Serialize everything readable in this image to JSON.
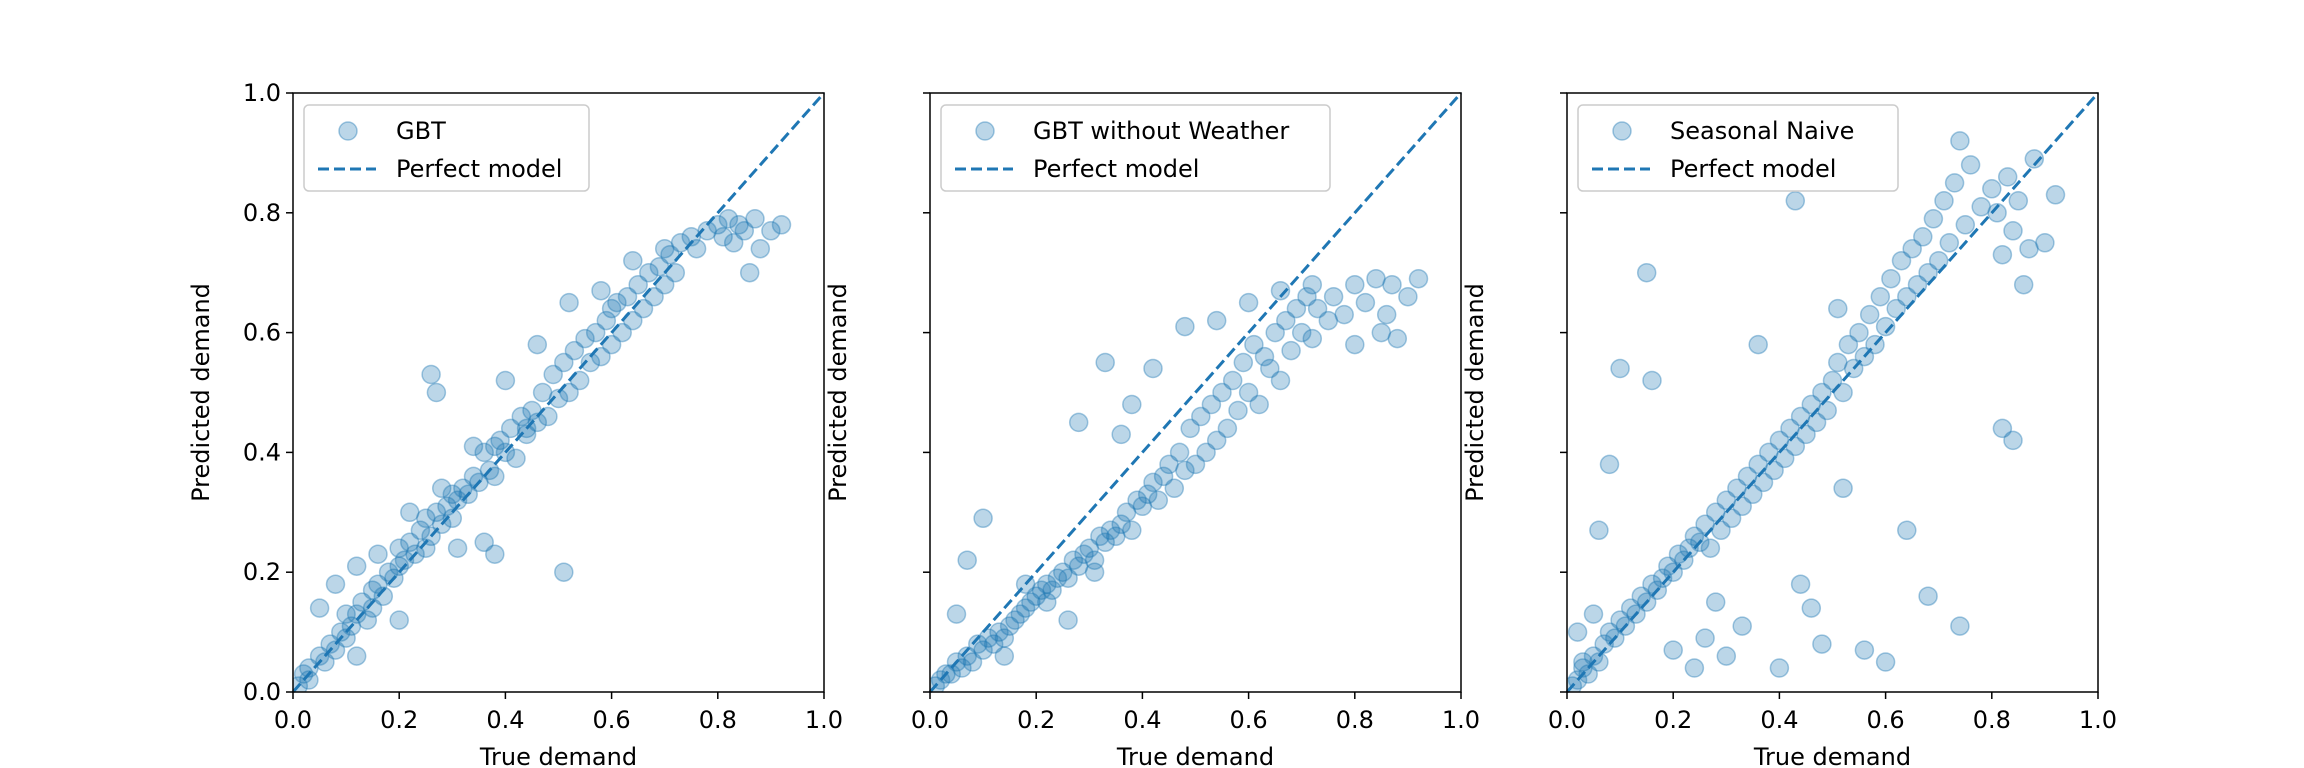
{
  "chart_data": [
    {
      "type": "scatter",
      "xlabel": "True demand",
      "ylabel": "Predicted demand",
      "xlim": [
        0.0,
        1.0
      ],
      "ylim": [
        0.0,
        1.0
      ],
      "x_ticks": [
        "0.0",
        "0.2",
        "0.4",
        "0.6",
        "0.8",
        "1.0"
      ],
      "y_ticks": [
        "0.0",
        "0.2",
        "0.4",
        "0.6",
        "0.8",
        "1.0"
      ],
      "legend": {
        "location": "upper-left",
        "entries": [
          "GBT",
          "Perfect model"
        ]
      },
      "series": [
        {
          "name": "GBT",
          "kind": "points",
          "color": "#1f77b4",
          "alpha": 0.3,
          "x": [
            0.01,
            0.02,
            0.03,
            0.03,
            0.05,
            0.06,
            0.07,
            0.08,
            0.09,
            0.1,
            0.1,
            0.11,
            0.12,
            0.13,
            0.14,
            0.15,
            0.15,
            0.16,
            0.17,
            0.18,
            0.19,
            0.2,
            0.2,
            0.21,
            0.22,
            0.23,
            0.24,
            0.25,
            0.25,
            0.26,
            0.27,
            0.28,
            0.29,
            0.3,
            0.3,
            0.31,
            0.32,
            0.33,
            0.34,
            0.35,
            0.36,
            0.37,
            0.38,
            0.38,
            0.39,
            0.4,
            0.41,
            0.42,
            0.43,
            0.44,
            0.45,
            0.46,
            0.47,
            0.48,
            0.49,
            0.5,
            0.51,
            0.52,
            0.53,
            0.54,
            0.55,
            0.56,
            0.57,
            0.58,
            0.59,
            0.6,
            0.61,
            0.62,
            0.63,
            0.64,
            0.65,
            0.66,
            0.67,
            0.68,
            0.69,
            0.7,
            0.71,
            0.72,
            0.73,
            0.75,
            0.76,
            0.78,
            0.8,
            0.81,
            0.82,
            0.83,
            0.84,
            0.85,
            0.86,
            0.87,
            0.88,
            0.9,
            0.92,
            0.05,
            0.08,
            0.12,
            0.16,
            0.22,
            0.28,
            0.34,
            0.4,
            0.46,
            0.52,
            0.58,
            0.64,
            0.7,
            0.12,
            0.2,
            0.26,
            0.36,
            0.44,
            0.51,
            0.6,
            0.38,
            0.27,
            0.31
          ],
          "y": [
            0.01,
            0.03,
            0.04,
            0.02,
            0.06,
            0.05,
            0.08,
            0.07,
            0.1,
            0.09,
            0.13,
            0.11,
            0.13,
            0.15,
            0.12,
            0.17,
            0.14,
            0.18,
            0.16,
            0.2,
            0.19,
            0.21,
            0.24,
            0.22,
            0.25,
            0.23,
            0.27,
            0.24,
            0.29,
            0.26,
            0.3,
            0.28,
            0.31,
            0.29,
            0.33,
            0.32,
            0.34,
            0.33,
            0.36,
            0.35,
            0.4,
            0.37,
            0.41,
            0.36,
            0.42,
            0.4,
            0.44,
            0.39,
            0.46,
            0.43,
            0.47,
            0.45,
            0.5,
            0.46,
            0.53,
            0.49,
            0.55,
            0.5,
            0.57,
            0.52,
            0.59,
            0.55,
            0.6,
            0.56,
            0.62,
            0.58,
            0.65,
            0.6,
            0.66,
            0.62,
            0.68,
            0.64,
            0.7,
            0.66,
            0.71,
            0.68,
            0.73,
            0.7,
            0.75,
            0.76,
            0.74,
            0.77,
            0.78,
            0.76,
            0.79,
            0.75,
            0.78,
            0.77,
            0.7,
            0.79,
            0.74,
            0.77,
            0.78,
            0.14,
            0.18,
            0.21,
            0.23,
            0.3,
            0.34,
            0.41,
            0.52,
            0.58,
            0.65,
            0.67,
            0.72,
            0.74,
            0.06,
            0.12,
            0.53,
            0.25,
            0.44,
            0.2,
            0.64,
            0.23,
            0.5,
            0.24
          ]
        },
        {
          "name": "Perfect model",
          "kind": "dashed-line",
          "color": "#1f77b4",
          "x": [
            0.0,
            1.0
          ],
          "y": [
            0.0,
            1.0
          ]
        }
      ]
    },
    {
      "type": "scatter",
      "xlabel": "True demand",
      "ylabel": "Predicted demand",
      "xlim": [
        0.0,
        1.0
      ],
      "ylim": [
        0.0,
        1.0
      ],
      "x_ticks": [
        "0.0",
        "0.2",
        "0.4",
        "0.6",
        "0.8",
        "1.0"
      ],
      "y_ticks": [
        "",
        "",
        "",
        "",
        "",
        ""
      ],
      "legend": {
        "location": "upper-left",
        "entries": [
          "GBT without Weather",
          "Perfect model"
        ]
      },
      "series": [
        {
          "name": "GBT without Weather",
          "kind": "points",
          "color": "#1f77b4",
          "alpha": 0.3,
          "x": [
            0.01,
            0.02,
            0.03,
            0.04,
            0.05,
            0.06,
            0.07,
            0.08,
            0.09,
            0.1,
            0.11,
            0.12,
            0.13,
            0.14,
            0.15,
            0.16,
            0.17,
            0.18,
            0.19,
            0.2,
            0.21,
            0.22,
            0.23,
            0.24,
            0.25,
            0.26,
            0.27,
            0.28,
            0.29,
            0.3,
            0.31,
            0.32,
            0.33,
            0.34,
            0.35,
            0.36,
            0.37,
            0.38,
            0.39,
            0.4,
            0.41,
            0.42,
            0.43,
            0.44,
            0.45,
            0.46,
            0.47,
            0.48,
            0.49,
            0.5,
            0.51,
            0.52,
            0.53,
            0.54,
            0.55,
            0.56,
            0.57,
            0.58,
            0.59,
            0.6,
            0.61,
            0.62,
            0.63,
            0.64,
            0.65,
            0.66,
            0.67,
            0.68,
            0.69,
            0.7,
            0.71,
            0.72,
            0.73,
            0.75,
            0.76,
            0.78,
            0.8,
            0.82,
            0.84,
            0.85,
            0.86,
            0.87,
            0.88,
            0.9,
            0.92,
            0.05,
            0.07,
            0.1,
            0.14,
            0.18,
            0.22,
            0.28,
            0.33,
            0.38,
            0.42,
            0.48,
            0.54,
            0.6,
            0.66,
            0.72,
            0.8,
            0.26,
            0.31,
            0.36
          ],
          "y": [
            0.01,
            0.02,
            0.03,
            0.03,
            0.05,
            0.04,
            0.06,
            0.05,
            0.08,
            0.07,
            0.09,
            0.08,
            0.1,
            0.09,
            0.11,
            0.12,
            0.13,
            0.14,
            0.15,
            0.16,
            0.17,
            0.18,
            0.17,
            0.19,
            0.2,
            0.19,
            0.22,
            0.21,
            0.23,
            0.24,
            0.22,
            0.26,
            0.25,
            0.27,
            0.26,
            0.28,
            0.3,
            0.27,
            0.32,
            0.31,
            0.33,
            0.35,
            0.32,
            0.36,
            0.38,
            0.34,
            0.4,
            0.37,
            0.44,
            0.38,
            0.46,
            0.4,
            0.48,
            0.42,
            0.5,
            0.44,
            0.52,
            0.47,
            0.55,
            0.5,
            0.58,
            0.48,
            0.56,
            0.54,
            0.6,
            0.52,
            0.62,
            0.57,
            0.64,
            0.6,
            0.66,
            0.59,
            0.64,
            0.62,
            0.66,
            0.63,
            0.68,
            0.65,
            0.69,
            0.6,
            0.63,
            0.68,
            0.59,
            0.66,
            0.69,
            0.13,
            0.22,
            0.29,
            0.06,
            0.18,
            0.15,
            0.45,
            0.55,
            0.48,
            0.54,
            0.61,
            0.62,
            0.65,
            0.67,
            0.68,
            0.58,
            0.12,
            0.2,
            0.43
          ]
        },
        {
          "name": "Perfect model",
          "kind": "dashed-line",
          "color": "#1f77b4",
          "x": [
            0.0,
            1.0
          ],
          "y": [
            0.0,
            1.0
          ]
        }
      ]
    },
    {
      "type": "scatter",
      "xlabel": "True demand",
      "ylabel": "Predicted demand",
      "xlim": [
        0.0,
        1.0
      ],
      "ylim": [
        0.0,
        1.0
      ],
      "x_ticks": [
        "0.0",
        "0.2",
        "0.4",
        "0.6",
        "0.8",
        "1.0"
      ],
      "y_ticks": [
        "",
        "",
        "",
        "",
        "",
        ""
      ],
      "legend": {
        "location": "upper-left",
        "entries": [
          "Seasonal Naive",
          "Perfect model"
        ]
      },
      "series": [
        {
          "name": "Seasonal Naive",
          "kind": "points",
          "color": "#1f77b4",
          "alpha": 0.3,
          "x": [
            0.01,
            0.02,
            0.03,
            0.04,
            0.05,
            0.06,
            0.07,
            0.08,
            0.09,
            0.1,
            0.11,
            0.12,
            0.13,
            0.14,
            0.15,
            0.16,
            0.17,
            0.18,
            0.19,
            0.2,
            0.21,
            0.22,
            0.23,
            0.24,
            0.25,
            0.26,
            0.27,
            0.28,
            0.29,
            0.3,
            0.31,
            0.32,
            0.33,
            0.34,
            0.35,
            0.36,
            0.37,
            0.38,
            0.39,
            0.4,
            0.41,
            0.42,
            0.43,
            0.44,
            0.45,
            0.46,
            0.47,
            0.48,
            0.49,
            0.5,
            0.51,
            0.52,
            0.53,
            0.54,
            0.55,
            0.56,
            0.57,
            0.58,
            0.59,
            0.6,
            0.61,
            0.62,
            0.63,
            0.64,
            0.65,
            0.66,
            0.67,
            0.68,
            0.69,
            0.7,
            0.71,
            0.72,
            0.73,
            0.74,
            0.75,
            0.76,
            0.78,
            0.8,
            0.81,
            0.82,
            0.83,
            0.84,
            0.85,
            0.86,
            0.87,
            0.88,
            0.9,
            0.92,
            0.02,
            0.03,
            0.05,
            0.06,
            0.08,
            0.1,
            0.15,
            0.16,
            0.2,
            0.24,
            0.26,
            0.28,
            0.3,
            0.33,
            0.36,
            0.4,
            0.44,
            0.48,
            0.52,
            0.56,
            0.6,
            0.64,
            0.68,
            0.74,
            0.82,
            0.84,
            0.43,
            0.46,
            0.51
          ],
          "y": [
            0.01,
            0.02,
            0.04,
            0.03,
            0.06,
            0.05,
            0.08,
            0.1,
            0.09,
            0.12,
            0.11,
            0.14,
            0.13,
            0.16,
            0.15,
            0.18,
            0.17,
            0.19,
            0.21,
            0.2,
            0.23,
            0.22,
            0.24,
            0.26,
            0.25,
            0.28,
            0.24,
            0.3,
            0.27,
            0.32,
            0.29,
            0.34,
            0.31,
            0.36,
            0.33,
            0.38,
            0.35,
            0.4,
            0.37,
            0.42,
            0.39,
            0.44,
            0.41,
            0.46,
            0.43,
            0.48,
            0.45,
            0.5,
            0.47,
            0.52,
            0.55,
            0.5,
            0.58,
            0.54,
            0.6,
            0.56,
            0.63,
            0.58,
            0.66,
            0.61,
            0.69,
            0.64,
            0.72,
            0.66,
            0.74,
            0.68,
            0.76,
            0.7,
            0.79,
            0.72,
            0.82,
            0.75,
            0.85,
            0.92,
            0.78,
            0.88,
            0.81,
            0.84,
            0.8,
            0.73,
            0.86,
            0.77,
            0.82,
            0.68,
            0.74,
            0.89,
            0.75,
            0.83,
            0.1,
            0.05,
            0.13,
            0.27,
            0.38,
            0.54,
            0.7,
            0.52,
            0.07,
            0.04,
            0.09,
            0.15,
            0.06,
            0.11,
            0.58,
            0.04,
            0.18,
            0.08,
            0.34,
            0.07,
            0.05,
            0.27,
            0.16,
            0.11,
            0.44,
            0.42,
            0.82,
            0.14,
            0.64
          ]
        },
        {
          "name": "Perfect model",
          "kind": "dashed-line",
          "color": "#1f77b4",
          "x": [
            0.0,
            1.0
          ],
          "y": [
            0.0,
            1.0
          ]
        }
      ]
    }
  ]
}
